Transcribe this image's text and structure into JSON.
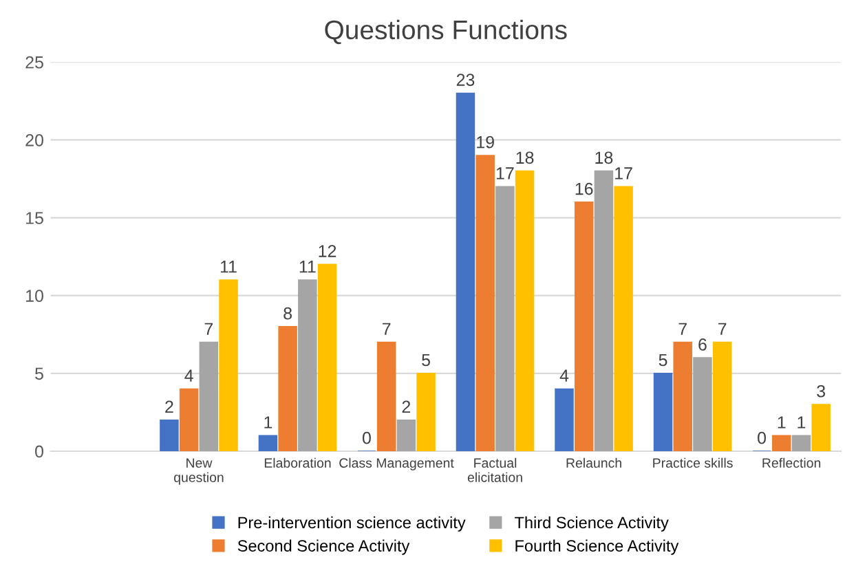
{
  "chart_data": {
    "type": "bar",
    "title": "Questions Functions",
    "categories": [
      null,
      "New\nquestion",
      "Elaboration",
      "Class Management",
      "Factual\nelicitation",
      "Relaunch",
      "Practice skills",
      "Reflection"
    ],
    "series": [
      {
        "name": "Pre-intervention science activity",
        "color": "#4472c4",
        "values": [
          null,
          2,
          1,
          0,
          23,
          4,
          5,
          0
        ]
      },
      {
        "name": "Second Science Activity",
        "color": "#ed7d31",
        "values": [
          null,
          4,
          8,
          7,
          19,
          16,
          7,
          1
        ]
      },
      {
        "name": "Third Science Activity",
        "color": "#a5a5a5",
        "values": [
          null,
          7,
          11,
          2,
          17,
          18,
          6,
          1
        ]
      },
      {
        "name": "Fourth Science Activity",
        "color": "#ffc000",
        "values": [
          null,
          11,
          12,
          5,
          18,
          17,
          7,
          3
        ]
      }
    ],
    "ylim": [
      0,
      25
    ],
    "yticks": [
      0,
      5,
      10,
      15,
      20,
      25
    ],
    "grid": "y",
    "legend": "bottom",
    "data_labels": true
  }
}
